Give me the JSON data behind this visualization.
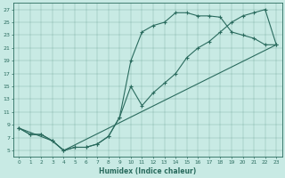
{
  "xlabel": "Humidex (Indice chaleur)",
  "bg_color": "#c8eae4",
  "line_color": "#2a6b5e",
  "xlim": [
    -0.5,
    23.5
  ],
  "ylim": [
    4.0,
    28.0
  ],
  "xticks": [
    0,
    1,
    2,
    3,
    4,
    5,
    6,
    7,
    8,
    9,
    10,
    11,
    12,
    13,
    14,
    15,
    16,
    17,
    18,
    19,
    20,
    21,
    22,
    23
  ],
  "yticks": [
    5,
    7,
    9,
    11,
    13,
    15,
    17,
    19,
    21,
    23,
    25,
    27
  ],
  "line1_x": [
    0,
    1,
    2,
    3,
    4,
    5,
    6,
    7,
    8,
    9,
    10,
    11,
    12,
    13,
    14,
    15,
    16,
    17,
    18,
    19,
    20,
    21,
    22,
    23
  ],
  "line1_y": [
    8.5,
    7.5,
    7.5,
    6.5,
    5.0,
    5.5,
    5.5,
    6.0,
    7.2,
    10.2,
    19.0,
    23.5,
    24.5,
    25.0,
    26.5,
    26.5,
    26.0,
    26.0,
    25.8,
    23.5,
    23.0,
    22.5,
    21.5,
    21.5
  ],
  "line2_x": [
    0,
    1,
    2,
    3,
    4,
    5,
    6,
    7,
    8,
    9,
    10,
    11,
    12,
    13,
    14,
    15,
    16,
    17,
    18,
    19,
    20,
    21,
    22,
    23
  ],
  "line2_y": [
    8.5,
    7.5,
    7.5,
    6.5,
    5.0,
    5.5,
    5.5,
    6.0,
    7.2,
    10.2,
    15.0,
    12.0,
    14.0,
    15.5,
    17.0,
    19.5,
    21.0,
    22.0,
    23.5,
    25.0,
    26.0,
    26.5,
    27.0,
    21.5
  ],
  "line3_x": [
    0,
    3,
    4,
    23
  ],
  "line3_y": [
    8.5,
    6.5,
    5.0,
    21.5
  ]
}
